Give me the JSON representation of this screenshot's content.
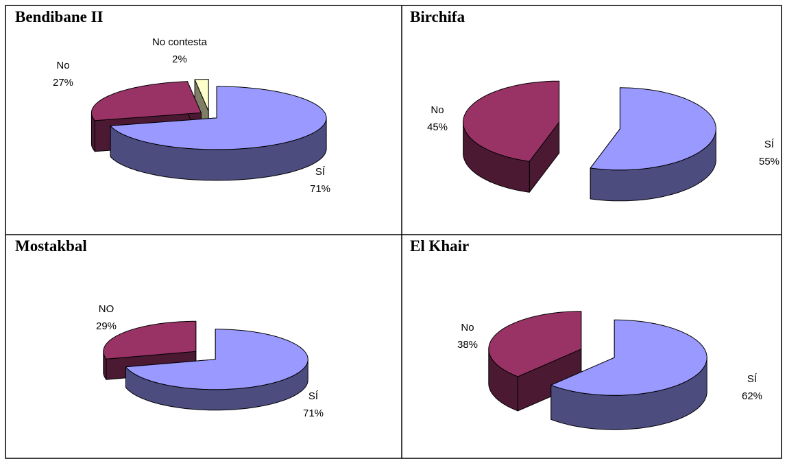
{
  "chart_data": [
    {
      "type": "pie",
      "title": "Bendibane II",
      "categories": [
        "SÍ",
        "No",
        "No contesta"
      ],
      "values": [
        71,
        27,
        2
      ],
      "value_labels": [
        "71%",
        "27%",
        "2%"
      ],
      "colors": [
        "#9999ff",
        "#993366",
        "#ffffcc"
      ]
    },
    {
      "type": "pie",
      "title": "Birchifa",
      "categories": [
        "SÍ",
        "No"
      ],
      "values": [
        55,
        45
      ],
      "value_labels": [
        "55%",
        "45%"
      ],
      "colors": [
        "#9999ff",
        "#993366"
      ]
    },
    {
      "type": "pie",
      "title": "Mostakbal",
      "categories": [
        "SÍ",
        "NO"
      ],
      "values": [
        71,
        29
      ],
      "value_labels": [
        "71%",
        "29%"
      ],
      "colors": [
        "#9999ff",
        "#993366"
      ]
    },
    {
      "type": "pie",
      "title": "El Khair",
      "categories": [
        "SÍ",
        "No"
      ],
      "values": [
        62,
        38
      ],
      "value_labels": [
        "62%",
        "38%"
      ],
      "colors": [
        "#9999ff",
        "#993366"
      ]
    }
  ]
}
